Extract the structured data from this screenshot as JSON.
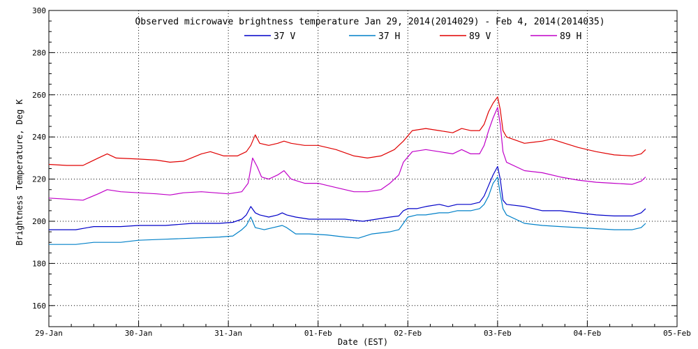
{
  "chart_data": {
    "type": "line",
    "title": "Observed microwave brightness temperature Jan 29, 2014(2014029) - Feb  4, 2014(2014035)",
    "xlabel": "Date (EST)",
    "ylabel": "Brightness Temperature, Deg K",
    "x_ticks": [
      "29-Jan",
      "30-Jan",
      "31-Jan",
      "01-Feb",
      "02-Feb",
      "03-Feb",
      "04-Feb",
      "05-Feb"
    ],
    "xlim_days": [
      0,
      7
    ],
    "ylim": [
      150,
      300
    ],
    "y_ticks": [
      160,
      180,
      200,
      220,
      240,
      260,
      280,
      300
    ],
    "grid": true,
    "legend_position": "top-center",
    "series": [
      {
        "name": "37 V",
        "color": "#0000c8",
        "points": [
          [
            0,
            196
          ],
          [
            0.3,
            196
          ],
          [
            0.5,
            197.5
          ],
          [
            0.8,
            197.5
          ],
          [
            1.0,
            198
          ],
          [
            1.3,
            198
          ],
          [
            1.6,
            199
          ],
          [
            1.9,
            199
          ],
          [
            2.05,
            199.5
          ],
          [
            2.15,
            201
          ],
          [
            2.2,
            203
          ],
          [
            2.25,
            207
          ],
          [
            2.3,
            204
          ],
          [
            2.35,
            203
          ],
          [
            2.45,
            202
          ],
          [
            2.55,
            203
          ],
          [
            2.6,
            204
          ],
          [
            2.65,
            203
          ],
          [
            2.75,
            202
          ],
          [
            2.9,
            201
          ],
          [
            3.1,
            201
          ],
          [
            3.3,
            201
          ],
          [
            3.5,
            200
          ],
          [
            3.65,
            201
          ],
          [
            3.8,
            202
          ],
          [
            3.9,
            202.5
          ],
          [
            3.95,
            205
          ],
          [
            4.0,
            206
          ],
          [
            4.1,
            206
          ],
          [
            4.2,
            207
          ],
          [
            4.35,
            208
          ],
          [
            4.45,
            207
          ],
          [
            4.55,
            208
          ],
          [
            4.7,
            208
          ],
          [
            4.8,
            209
          ],
          [
            4.85,
            212
          ],
          [
            4.9,
            217
          ],
          [
            4.95,
            222
          ],
          [
            5.0,
            226
          ],
          [
            5.03,
            220
          ],
          [
            5.06,
            210
          ],
          [
            5.1,
            208
          ],
          [
            5.3,
            207
          ],
          [
            5.5,
            205
          ],
          [
            5.7,
            205
          ],
          [
            5.9,
            204
          ],
          [
            6.1,
            203
          ],
          [
            6.3,
            202.5
          ],
          [
            6.5,
            202.5
          ],
          [
            6.6,
            204
          ],
          [
            6.65,
            206
          ]
        ]
      },
      {
        "name": "37 H",
        "color": "#0080c8",
        "points": [
          [
            0,
            189
          ],
          [
            0.3,
            189
          ],
          [
            0.5,
            190
          ],
          [
            0.8,
            190
          ],
          [
            1.0,
            191
          ],
          [
            1.3,
            191.5
          ],
          [
            1.6,
            192
          ],
          [
            1.9,
            192.5
          ],
          [
            2.05,
            193
          ],
          [
            2.15,
            196
          ],
          [
            2.2,
            198
          ],
          [
            2.25,
            202
          ],
          [
            2.3,
            197
          ],
          [
            2.4,
            196
          ],
          [
            2.5,
            197
          ],
          [
            2.6,
            198
          ],
          [
            2.65,
            197
          ],
          [
            2.75,
            194
          ],
          [
            2.9,
            194
          ],
          [
            3.1,
            193.5
          ],
          [
            3.3,
            192.5
          ],
          [
            3.45,
            192
          ],
          [
            3.6,
            194
          ],
          [
            3.8,
            195
          ],
          [
            3.9,
            196
          ],
          [
            3.95,
            199
          ],
          [
            4.0,
            202
          ],
          [
            4.1,
            203
          ],
          [
            4.2,
            203
          ],
          [
            4.35,
            204
          ],
          [
            4.45,
            204
          ],
          [
            4.55,
            205
          ],
          [
            4.7,
            205
          ],
          [
            4.8,
            206
          ],
          [
            4.85,
            208
          ],
          [
            4.9,
            212
          ],
          [
            4.95,
            218
          ],
          [
            5.0,
            221
          ],
          [
            5.03,
            213
          ],
          [
            5.06,
            206
          ],
          [
            5.1,
            203
          ],
          [
            5.3,
            199
          ],
          [
            5.5,
            198
          ],
          [
            5.7,
            197.5
          ],
          [
            5.9,
            197
          ],
          [
            6.1,
            196.5
          ],
          [
            6.3,
            196
          ],
          [
            6.5,
            196
          ],
          [
            6.6,
            197
          ],
          [
            6.65,
            199
          ]
        ]
      },
      {
        "name": "89 V",
        "color": "#e00000",
        "points": [
          [
            0,
            227
          ],
          [
            0.2,
            226.5
          ],
          [
            0.38,
            226.5
          ],
          [
            0.55,
            230
          ],
          [
            0.65,
            232
          ],
          [
            0.75,
            230
          ],
          [
            1.0,
            229.5
          ],
          [
            1.2,
            229
          ],
          [
            1.35,
            228
          ],
          [
            1.5,
            228.5
          ],
          [
            1.7,
            232
          ],
          [
            1.8,
            233
          ],
          [
            1.95,
            231
          ],
          [
            2.1,
            231
          ],
          [
            2.2,
            233
          ],
          [
            2.25,
            236
          ],
          [
            2.3,
            241
          ],
          [
            2.35,
            237
          ],
          [
            2.45,
            236
          ],
          [
            2.55,
            237
          ],
          [
            2.62,
            238
          ],
          [
            2.7,
            237
          ],
          [
            2.85,
            236
          ],
          [
            3.0,
            236
          ],
          [
            3.2,
            234
          ],
          [
            3.4,
            231
          ],
          [
            3.55,
            230
          ],
          [
            3.7,
            231
          ],
          [
            3.85,
            234
          ],
          [
            3.95,
            238
          ],
          [
            4.05,
            243
          ],
          [
            4.2,
            244
          ],
          [
            4.35,
            243
          ],
          [
            4.5,
            242
          ],
          [
            4.6,
            244
          ],
          [
            4.7,
            243
          ],
          [
            4.8,
            243
          ],
          [
            4.85,
            246
          ],
          [
            4.9,
            252
          ],
          [
            4.95,
            256
          ],
          [
            5.0,
            259
          ],
          [
            5.03,
            253
          ],
          [
            5.06,
            243
          ],
          [
            5.1,
            240
          ],
          [
            5.3,
            237
          ],
          [
            5.5,
            238
          ],
          [
            5.6,
            239
          ],
          [
            5.75,
            237
          ],
          [
            5.9,
            235
          ],
          [
            6.1,
            233
          ],
          [
            6.3,
            231.5
          ],
          [
            6.5,
            231
          ],
          [
            6.6,
            232
          ],
          [
            6.65,
            234
          ]
        ]
      },
      {
        "name": "89 H",
        "color": "#c000c8",
        "points": [
          [
            0,
            211
          ],
          [
            0.2,
            210.5
          ],
          [
            0.38,
            210
          ],
          [
            0.55,
            213
          ],
          [
            0.65,
            215
          ],
          [
            0.8,
            214
          ],
          [
            1.0,
            213.5
          ],
          [
            1.2,
            213
          ],
          [
            1.35,
            212.5
          ],
          [
            1.5,
            213.5
          ],
          [
            1.7,
            214
          ],
          [
            1.85,
            213.5
          ],
          [
            2.0,
            213
          ],
          [
            2.15,
            214
          ],
          [
            2.22,
            218
          ],
          [
            2.27,
            230
          ],
          [
            2.32,
            226
          ],
          [
            2.37,
            221
          ],
          [
            2.45,
            220
          ],
          [
            2.55,
            222
          ],
          [
            2.62,
            224
          ],
          [
            2.7,
            220
          ],
          [
            2.85,
            218
          ],
          [
            3.0,
            218
          ],
          [
            3.2,
            216
          ],
          [
            3.4,
            214
          ],
          [
            3.55,
            214
          ],
          [
            3.7,
            215
          ],
          [
            3.8,
            218
          ],
          [
            3.9,
            222
          ],
          [
            3.95,
            228
          ],
          [
            4.05,
            233
          ],
          [
            4.2,
            234
          ],
          [
            4.35,
            233
          ],
          [
            4.5,
            232
          ],
          [
            4.6,
            234
          ],
          [
            4.7,
            232
          ],
          [
            4.8,
            232
          ],
          [
            4.85,
            236
          ],
          [
            4.9,
            243
          ],
          [
            4.95,
            249
          ],
          [
            5.0,
            254
          ],
          [
            5.03,
            246
          ],
          [
            5.06,
            233
          ],
          [
            5.1,
            228
          ],
          [
            5.3,
            224
          ],
          [
            5.5,
            223
          ],
          [
            5.7,
            221
          ],
          [
            5.9,
            219.5
          ],
          [
            6.1,
            218.5
          ],
          [
            6.3,
            218
          ],
          [
            6.5,
            217.5
          ],
          [
            6.6,
            219
          ],
          [
            6.65,
            221
          ]
        ]
      }
    ]
  }
}
